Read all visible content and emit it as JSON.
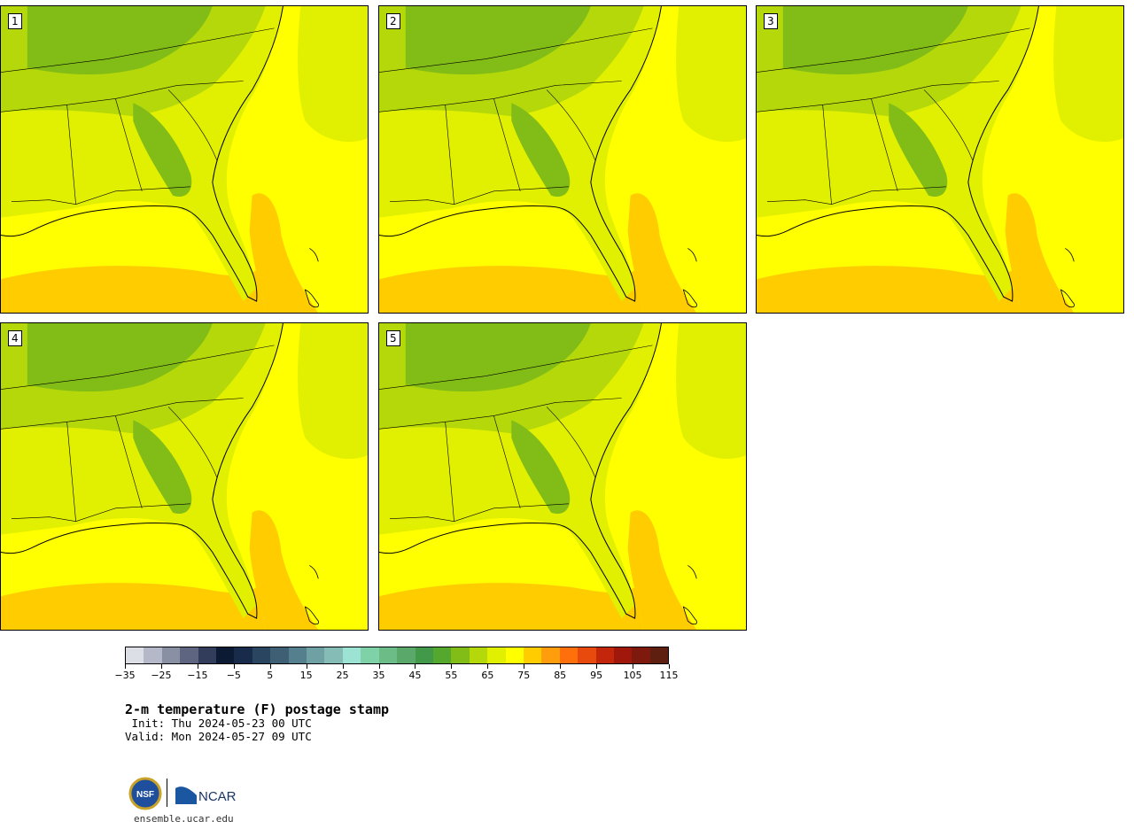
{
  "panels": [
    {
      "label": "1"
    },
    {
      "label": "2"
    },
    {
      "label": "3"
    },
    {
      "label": "4"
    },
    {
      "label": "5"
    }
  ],
  "colorbar": {
    "colors": [
      "#dcdfe6",
      "#b4b8c8",
      "#8a90a4",
      "#5e6580",
      "#323d5c",
      "#0c1a33",
      "#182b4a",
      "#2a4560",
      "#3f5f75",
      "#557f8c",
      "#6fa0a3",
      "#86bcb6",
      "#9de3d3",
      "#7fd1a7",
      "#6cbc88",
      "#5aa96a",
      "#43994a",
      "#55a82e",
      "#82bd17",
      "#b4d80a",
      "#e1ef00",
      "#ffff00",
      "#ffcc00",
      "#ff9d0c",
      "#ff6f0c",
      "#e84a0e",
      "#c4260c",
      "#a0180c",
      "#7d1a0d",
      "#5e1e10"
    ],
    "ticks": [
      "−35",
      "−25",
      "−15",
      "−5",
      "5",
      "15",
      "25",
      "35",
      "45",
      "55",
      "65",
      "75",
      "85",
      "95",
      "105",
      "115"
    ]
  },
  "title": "2-m temperature (F) postage stamp",
  "init_line": " Init: Thu 2024-05-23 00 UTC",
  "valid_line": "Valid: Mon 2024-05-27 09 UTC",
  "footer": {
    "nsf_label": "NSF",
    "ncar_label": "NCAR",
    "url": "ensemble.ucar.edu"
  }
}
